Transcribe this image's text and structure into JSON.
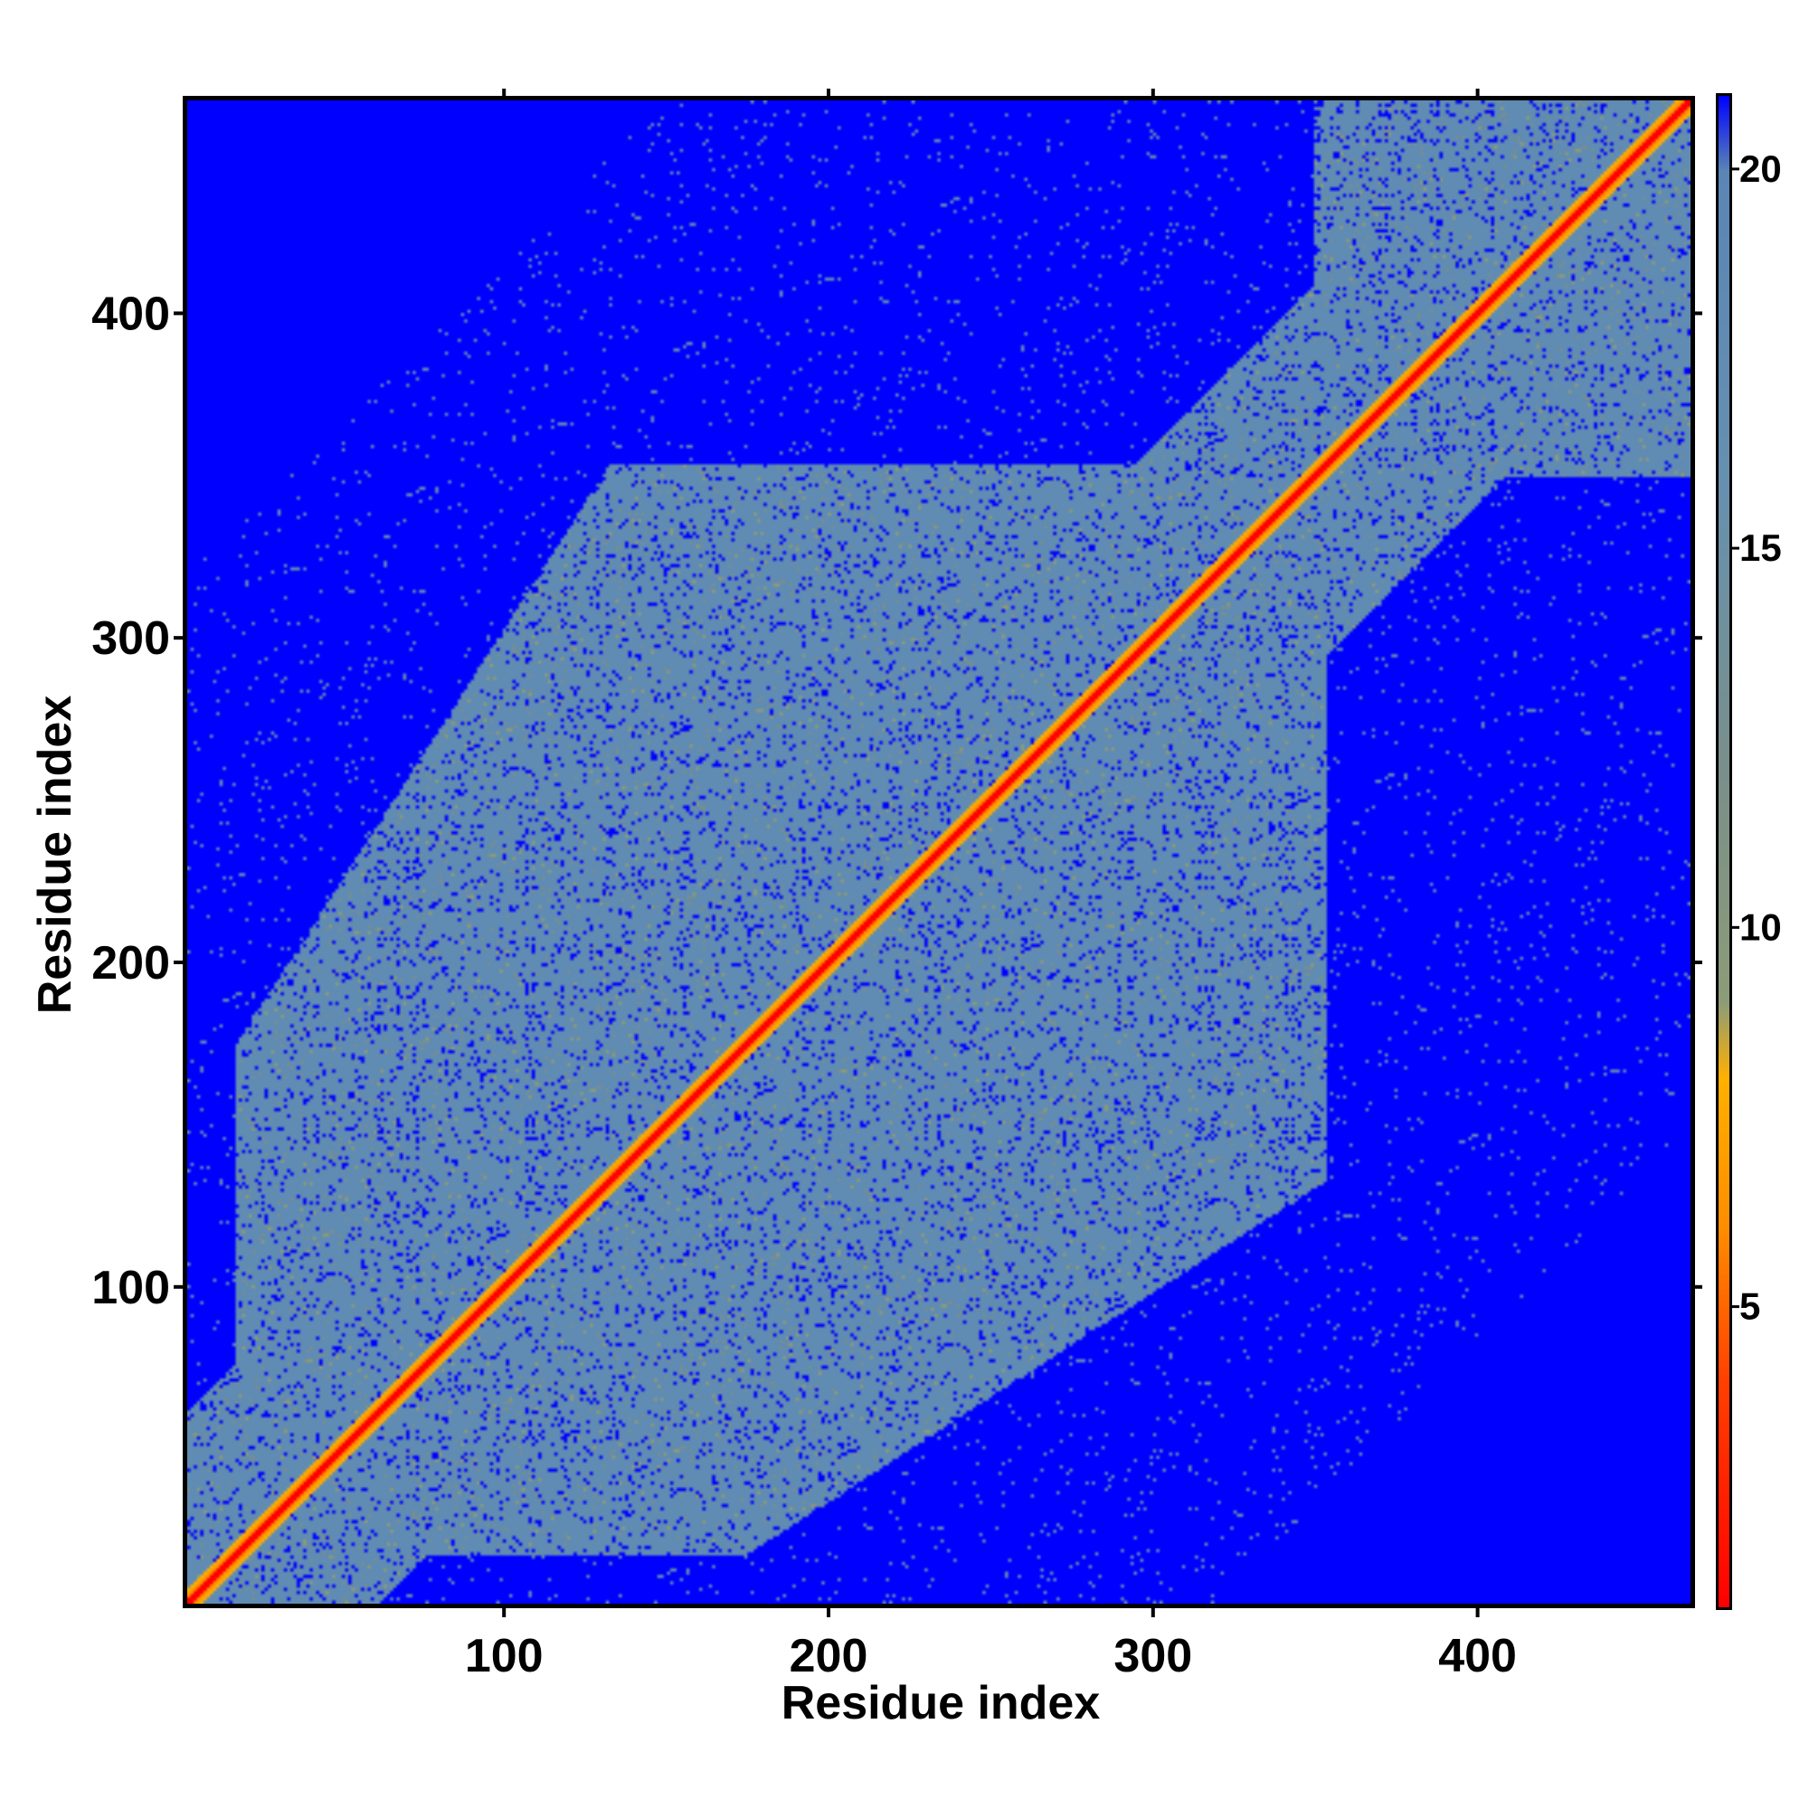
{
  "chart_data": {
    "type": "heatmap",
    "title": "",
    "xlabel": "Residue index",
    "ylabel": "Residue index",
    "xlim": [
      1,
      467
    ],
    "ylim": [
      1,
      467
    ],
    "x_ticks": [
      "100",
      "200",
      "300",
      "400"
    ],
    "y_ticks": [
      "100",
      "200",
      "300",
      "400"
    ],
    "x_tick_values": [
      100,
      200,
      300,
      400
    ],
    "y_tick_values": [
      100,
      200,
      300,
      400
    ],
    "colorbar": {
      "range": [
        1,
        21
      ],
      "tick_labels": [
        "5",
        "10",
        "15",
        "20"
      ],
      "tick_values": [
        5,
        10,
        15,
        20
      ],
      "stops": [
        {
          "value": 1,
          "color": "#ff0000"
        },
        {
          "value": 4,
          "color": "#ff4000"
        },
        {
          "value": 6,
          "color": "#ff8c00"
        },
        {
          "value": 8,
          "color": "#ffb000"
        },
        {
          "value": 9,
          "color": "#8c9c78"
        },
        {
          "value": 12,
          "color": "#7a8f8a"
        },
        {
          "value": 16,
          "color": "#6690b0"
        },
        {
          "value": 20,
          "color": "#5a85b5"
        },
        {
          "value": 21,
          "color": "#0000ff"
        }
      ]
    },
    "description_values": {
      "diagonal_distance": 1,
      "background_distance": 21,
      "domain_distance": 18
    },
    "grid": false
  }
}
